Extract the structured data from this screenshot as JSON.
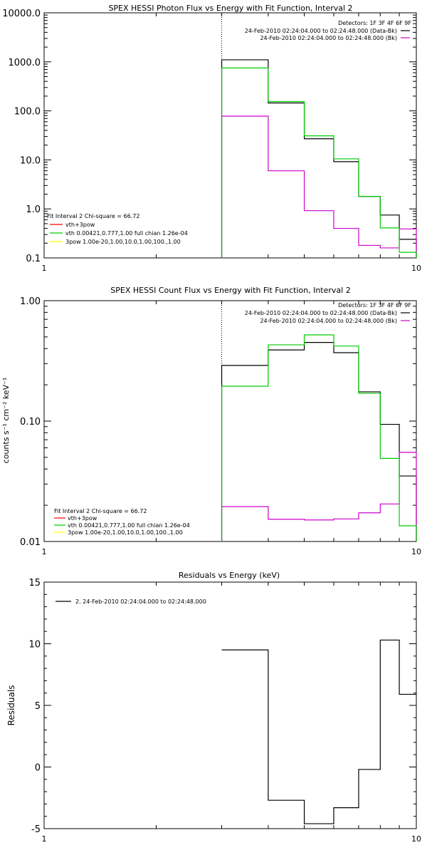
{
  "chart_data": [
    {
      "type": "line",
      "title": "SPEX HESSI Photon Flux vs Energy with Fit Function, Interval 2",
      "xlabel": "",
      "ylabel": "",
      "xscale": "log",
      "yscale": "log",
      "xlim": [
        1,
        10
      ],
      "ylim": [
        0.1,
        10000
      ],
      "x_ticks": [
        {
          "v": 1,
          "label": "1"
        },
        {
          "v": 10,
          "label": "10"
        }
      ],
      "y_ticks": [
        {
          "v": 0.1,
          "label": "0.1"
        },
        {
          "v": 1,
          "label": "1.0"
        },
        {
          "v": 10,
          "label": "10.0"
        },
        {
          "v": 100,
          "label": "100.0"
        },
        {
          "v": 1000,
          "label": "1000.0"
        },
        {
          "v": 10000,
          "label": "10000.0"
        }
      ],
      "header_lines": [
        "Detectors: 1F 3F 4F 6F 9F",
        "24-Feb-2010 02:24:04.000 to 02:24:48.000 (Data-Bk)",
        "24-Feb-2010 02:24:04.000 to 02:24:48.000 (Bk)"
      ],
      "header_swatches": [
        "#000000",
        "#cc00cc"
      ],
      "legend": {
        "placement": "bottom-left",
        "heading": "Fit Interval 2   Chi-square = 66.72",
        "entries": [
          {
            "label": "vth+3pow",
            "color": "#ff0000"
          },
          {
            "label": "vth 0.00421,0.777,1.00  full chian 1.26e-04",
            "color": "#00cc00"
          },
          {
            "label": "3pow 1.00e-20,1.00,10.0,1.00,100.,1.00",
            "color": "#ffff00"
          }
        ]
      },
      "vline_x": 3,
      "series": [
        {
          "color": "#000000",
          "edges": [
            3,
            4,
            5,
            6,
            7,
            8,
            9,
            10
          ],
          "values": [
            1100,
            145,
            27,
            9.2,
            1.8,
            0.75,
            0.24
          ]
        },
        {
          "color": "#cc00cc",
          "edges": [
            3,
            4,
            5,
            6,
            7,
            8,
            9,
            10
          ],
          "values": [
            78,
            6,
            0.92,
            0.4,
            0.18,
            0.16,
            0.39
          ]
        },
        {
          "color": "#00cc00",
          "edges": [
            3,
            4,
            5,
            6,
            7,
            8,
            9,
            10
          ],
          "values": [
            750,
            155,
            31,
            10.5,
            1.8,
            0.41,
            0.13
          ]
        }
      ]
    },
    {
      "type": "line",
      "title": "SPEX HESSI Count Flux vs Energy with Fit Function, Interval 2",
      "xlabel": "",
      "ylabel": "counts s⁻¹ cm⁻² keV⁻¹",
      "xscale": "log",
      "yscale": "log",
      "xlim": [
        1,
        10
      ],
      "ylim": [
        0.01,
        1
      ],
      "x_ticks": [
        {
          "v": 1,
          "label": "1"
        },
        {
          "v": 10,
          "label": "10"
        }
      ],
      "y_ticks": [
        {
          "v": 0.01,
          "label": "0.01"
        },
        {
          "v": 0.1,
          "label": "0.10"
        },
        {
          "v": 1,
          "label": "1.00"
        }
      ],
      "header_lines": [
        "Detectors: 1F 3F 4F 6F 9F",
        "24-Feb-2010 02:24:04.000 to 02:24:48.000 (Data-Bk)",
        "24-Feb-2010 02:24:04.000 to 02:24:48.000 (Bk)"
      ],
      "header_swatches": [
        "#000000",
        "#cc00cc"
      ],
      "legend": {
        "placement": "bottom-left",
        "heading": "Fit Interval 2   Chi-square = 66.72",
        "entries": [
          {
            "label": "vth+3pow",
            "color": "#ff0000"
          },
          {
            "label": "vth 0.00421,0.777,1.00  full chian 1.26e-04",
            "color": "#00cc00"
          },
          {
            "label": "3pow 1.00e-20,1.00,10.0,1.00,100.,1.00",
            "color": "#ffff00"
          }
        ]
      },
      "vline_x": 3,
      "series": [
        {
          "color": "#000000",
          "edges": [
            3,
            4,
            5,
            6,
            7,
            8,
            9,
            10
          ],
          "values": [
            0.29,
            0.39,
            0.45,
            0.37,
            0.175,
            0.094,
            0.035
          ]
        },
        {
          "color": "#cc00cc",
          "edges": [
            3,
            4,
            5,
            6,
            7,
            8,
            9,
            10
          ],
          "values": [
            0.0195,
            0.0153,
            0.0151,
            0.0154,
            0.0173,
            0.0205,
            0.055
          ]
        },
        {
          "color": "#00cc00",
          "edges": [
            3,
            4,
            5,
            6,
            7,
            8,
            9,
            10
          ],
          "values": [
            0.195,
            0.43,
            0.52,
            0.42,
            0.17,
            0.049,
            0.0135
          ]
        }
      ]
    },
    {
      "type": "line",
      "title": "Residuals vs Energy (keV)",
      "xlabel": "",
      "ylabel": "Residuals",
      "xscale": "log",
      "yscale": "linear",
      "xlim": [
        1,
        10
      ],
      "ylim": [
        -5,
        15
      ],
      "x_ticks": [
        {
          "v": 1,
          "label": "1"
        },
        {
          "v": 10,
          "label": "10"
        }
      ],
      "y_ticks": [
        {
          "v": -5,
          "label": "-5"
        },
        {
          "v": 0,
          "label": "0"
        },
        {
          "v": 5,
          "label": "5"
        },
        {
          "v": 10,
          "label": "10"
        },
        {
          "v": 15,
          "label": "15"
        }
      ],
      "legend": {
        "placement": "top-left",
        "heading": "",
        "entries": [
          {
            "label": "2. 24-Feb-2010 02:24:04.000 to 02:24:48.000",
            "color": "#000000"
          }
        ]
      },
      "series": [
        {
          "color": "#000000",
          "edges": [
            3,
            4,
            5,
            6,
            7,
            8,
            9,
            10
          ],
          "values": [
            9.5,
            -2.7,
            -4.6,
            -3.3,
            -0.2,
            10.3,
            5.9
          ]
        }
      ]
    }
  ]
}
